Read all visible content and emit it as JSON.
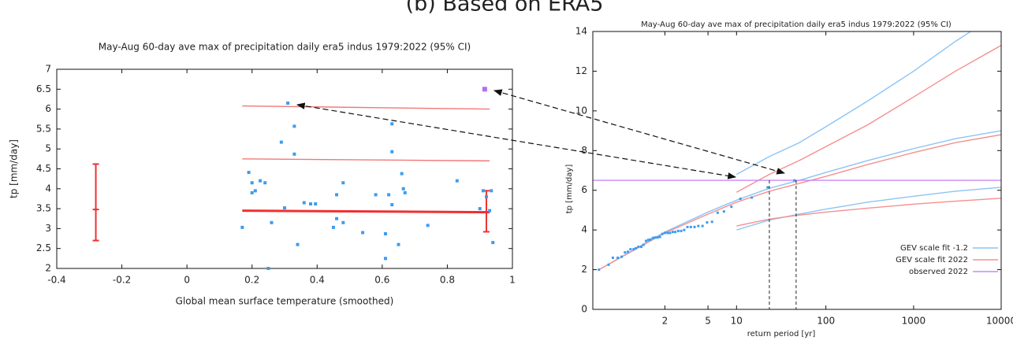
{
  "figure_title": "(b) Based on ERA5",
  "chart_data": [
    {
      "type": "scatter",
      "title": "May-Aug 60-day ave max of precipitation daily era5 indus 1979:2022 (95% CI)",
      "x_label": "Global mean surface temperature (smoothed)",
      "y_label": "tp [mm/day]",
      "xlim": [
        -0.4,
        1
      ],
      "xticks": [
        -0.4,
        -0.2,
        0,
        0.2,
        0.4,
        0.6,
        0.8,
        1
      ],
      "ylim": [
        2,
        7
      ],
      "yticks": [
        2,
        2.5,
        3,
        3.5,
        4,
        4.5,
        5,
        5.5,
        6,
        6.5,
        7
      ],
      "color": "#3c9cf0",
      "x": [
        0.17,
        0.19,
        0.2,
        0.2,
        0.21,
        0.225,
        0.24,
        0.25,
        0.26,
        0.29,
        0.3,
        0.31,
        0.33,
        0.33,
        0.34,
        0.36,
        0.38,
        0.395,
        0.45,
        0.46,
        0.46,
        0.48,
        0.48,
        0.54,
        0.58,
        0.61,
        0.61,
        0.62,
        0.63,
        0.63,
        0.63,
        0.65,
        0.66,
        0.665,
        0.67,
        0.74,
        0.83,
        0.9,
        0.91,
        0.92,
        0.93,
        0.935,
        0.94
      ],
      "values": [
        3.03,
        4.41,
        4.15,
        3.9,
        3.95,
        4.2,
        4.15,
        2,
        3.15,
        5.17,
        3.52,
        6.15,
        5.57,
        4.87,
        2.6,
        3.65,
        3.62,
        3.62,
        3.03,
        3.85,
        3.25,
        3.15,
        4.15,
        2.9,
        3.85,
        2.87,
        2.25,
        3.85,
        4.93,
        5.63,
        3.6,
        2.6,
        4.38,
        4.0,
        3.9,
        3.08,
        4.2,
        3.5,
        3.95,
        3.8,
        3.45,
        3.95,
        2.65
      ],
      "highlight": {
        "x": 0.915,
        "value": 6.5,
        "color": "#b070f0"
      },
      "lines": [
        {
          "x": [
            0.17,
            0.93
          ],
          "values": [
            3.45,
            3.41
          ],
          "color": "#f03030"
        },
        {
          "x": [
            0.17,
            0.93
          ],
          "values": [
            4.75,
            4.7
          ],
          "color": "#f07878"
        },
        {
          "x": [
            0.17,
            0.93
          ],
          "values": [
            6.08,
            6.0
          ],
          "color": "#f07878"
        }
      ],
      "error_color": "#f03030",
      "error_bars": [
        {
          "x": -0.28,
          "value": 3.48,
          "low": 2.7,
          "high": 4.62
        },
        {
          "x": 0.92,
          "value": 3.42,
          "low": 2.92,
          "high": 3.95
        }
      ]
    },
    {
      "type": "return_level",
      "title": "May-Aug 60-day ave max of precipitation daily era5 indus 1979:2022 (95% CI)",
      "x_label": "return period [yr]",
      "y_label": "tp [mm/day]",
      "xscale": "gumbel",
      "xlim": [
        1.01,
        10000
      ],
      "xticks": [
        2,
        5,
        10,
        100,
        1000,
        10000
      ],
      "ylim": [
        0,
        14
      ],
      "yticks": [
        0,
        2,
        4,
        6,
        8,
        10,
        12,
        14
      ],
      "legend": "lower right",
      "curve_x": [
        1.02,
        2,
        5,
        10,
        23,
        50,
        100,
        300,
        1000,
        3000,
        10000
      ],
      "series": [
        {
          "name": "GEV scale fit -1.2",
          "color": "#8cc4f4",
          "values": [
            2,
            3.9,
            4.9,
            5.5,
            6.1,
            6.5,
            6.9,
            7.5,
            8.1,
            8.6,
            9.0
          ],
          "upper": [
            null,
            null,
            null,
            6.8,
            7.7,
            8.4,
            9.2,
            10.5,
            12.0,
            13.5,
            15.0
          ],
          "lower": [
            null,
            null,
            null,
            4.0,
            4.5,
            4.8,
            5.05,
            5.4,
            5.7,
            5.95,
            6.15
          ]
        },
        {
          "name": "GEV scale fit 2022",
          "color": "#f59090",
          "values": [
            2,
            3.85,
            4.8,
            5.4,
            5.95,
            6.35,
            6.7,
            7.3,
            7.9,
            8.4,
            8.8
          ],
          "upper": [
            null,
            null,
            null,
            5.9,
            6.8,
            7.5,
            8.2,
            9.3,
            10.7,
            12.0,
            13.3
          ],
          "lower": [
            null,
            null,
            null,
            4.2,
            4.55,
            4.75,
            4.9,
            5.1,
            5.3,
            5.45,
            5.6
          ]
        },
        {
          "name": "observed 2022",
          "color": "#cc88f0",
          "value": 6.5,
          "return_periods": [
            23,
            46
          ]
        }
      ],
      "observed": {
        "color": "#3c9cf0",
        "x": [
          44,
          22,
          14.67,
          11,
          8.8,
          7.33,
          6.29,
          5.5,
          4.89,
          4.4,
          4,
          3.67,
          3.38,
          3.14,
          2.93,
          2.75,
          2.59,
          2.44,
          2.32,
          2.2,
          2.1,
          2,
          1.91,
          1.83,
          1.76,
          1.69,
          1.63,
          1.57,
          1.52,
          1.47,
          1.42,
          1.38,
          1.33,
          1.29,
          1.26,
          1.22,
          1.19,
          1.16,
          1.13,
          1.1,
          1.07,
          1.05,
          1.02
        ],
        "values": [
          6.5,
          6.15,
          5.63,
          5.57,
          5.17,
          4.93,
          4.87,
          4.41,
          4.38,
          4.2,
          4.2,
          4.15,
          4.15,
          4.15,
          4.0,
          3.95,
          3.95,
          3.9,
          3.9,
          3.85,
          3.85,
          3.85,
          3.8,
          3.65,
          3.62,
          3.62,
          3.6,
          3.52,
          3.5,
          3.45,
          3.25,
          3.15,
          3.15,
          3.08,
          3.03,
          3.03,
          2.9,
          2.87,
          2.65,
          2.6,
          2.6,
          2.25,
          2
        ]
      }
    }
  ]
}
